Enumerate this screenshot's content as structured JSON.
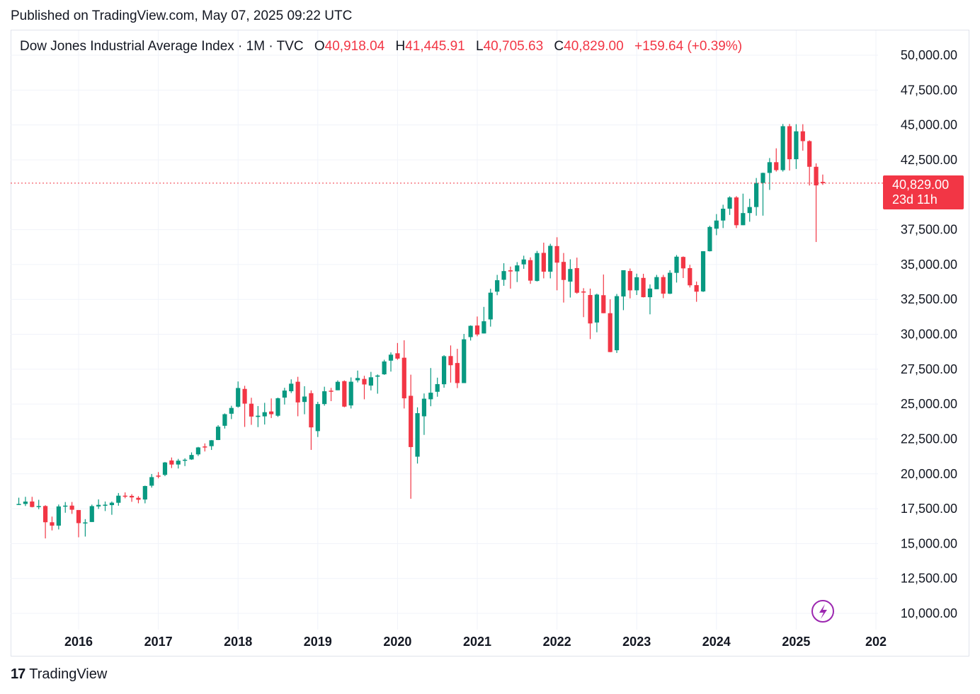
{
  "header": {
    "published": "Published on TradingView.com, May 07, 2025 09:22 UTC"
  },
  "legend": {
    "symbol": "Dow Jones Industrial Average Index · 1M · TVC",
    "open_label": "O",
    "open": "40,918.04",
    "high_label": "H",
    "high": "41,445.91",
    "low_label": "L",
    "low": "40,705.63",
    "close_label": "C",
    "close": "40,829.00",
    "change": "+159.64 (+0.39%)"
  },
  "price_tag": {
    "price": "40,829.00",
    "countdown": "23d 11h"
  },
  "footer": {
    "brand": "TradingView",
    "logo_mark": "17"
  },
  "colors": {
    "up": "#089981",
    "down": "#f23645",
    "grid": "#f0f3fa",
    "accent": "#9c27b0"
  },
  "chart_data": {
    "type": "candlestick",
    "interval": "1M",
    "y_ticks": [
      10000,
      12500,
      15000,
      17500,
      20000,
      22500,
      25000,
      27500,
      30000,
      32500,
      35000,
      37500,
      42500,
      45000,
      47500,
      50000
    ],
    "y_tick_labels": [
      "10,000.00",
      "12,500.00",
      "15,000.00",
      "17,500.00",
      "20,000.00",
      "22,500.00",
      "25,000.00",
      "27,500.00",
      "30,000.00",
      "32,500.00",
      "35,000.00",
      "37,500.00",
      "42,500.00",
      "45,000.00",
      "47,500.00",
      "50,000.00"
    ],
    "x_ticks": [
      "2016",
      "2017",
      "2018",
      "2019",
      "2020",
      "2021",
      "2022",
      "2023",
      "2024",
      "2025",
      "202"
    ],
    "ylim": [
      9000,
      51000
    ],
    "last_price": 40829.0,
    "candles": [
      {
        "t": "2015-04",
        "o": 17776,
        "h": 18289,
        "l": 17777,
        "c": 17841
      },
      {
        "t": "2015-05",
        "o": 17840,
        "h": 18352,
        "l": 17690,
        "c": 18011
      },
      {
        "t": "2015-06",
        "o": 18017,
        "h": 18352,
        "l": 17595,
        "c": 17620
      },
      {
        "t": "2015-07",
        "o": 17639,
        "h": 18137,
        "l": 17465,
        "c": 17690
      },
      {
        "t": "2015-08",
        "o": 17690,
        "h": 17750,
        "l": 15370,
        "c": 16528
      },
      {
        "t": "2015-09",
        "o": 16528,
        "h": 16933,
        "l": 15942,
        "c": 16285
      },
      {
        "t": "2015-10",
        "o": 16285,
        "h": 17799,
        "l": 16013,
        "c": 17664
      },
      {
        "t": "2015-11",
        "o": 17664,
        "h": 17978,
        "l": 17210,
        "c": 17720
      },
      {
        "t": "2015-12",
        "o": 17720,
        "h": 17980,
        "l": 17128,
        "c": 17425
      },
      {
        "t": "2016-01",
        "o": 17405,
        "h": 17405,
        "l": 15451,
        "c": 16466
      },
      {
        "t": "2016-02",
        "o": 16451,
        "h": 16752,
        "l": 15503,
        "c": 16517
      },
      {
        "t": "2016-03",
        "o": 16546,
        "h": 17791,
        "l": 16546,
        "c": 17685
      },
      {
        "t": "2016-04",
        "o": 17661,
        "h": 18168,
        "l": 17484,
        "c": 17774
      },
      {
        "t": "2016-05",
        "o": 17784,
        "h": 18015,
        "l": 17331,
        "c": 17787
      },
      {
        "t": "2016-06",
        "o": 17755,
        "h": 18016,
        "l": 17063,
        "c": 17930
      },
      {
        "t": "2016-07",
        "o": 17924,
        "h": 18623,
        "l": 17713,
        "c": 18432
      },
      {
        "t": "2016-08",
        "o": 18434,
        "h": 18668,
        "l": 18247,
        "c": 18401
      },
      {
        "t": "2016-09",
        "o": 18419,
        "h": 18539,
        "l": 17993,
        "c": 18308
      },
      {
        "t": "2016-10",
        "o": 18279,
        "h": 18399,
        "l": 17888,
        "c": 18142
      },
      {
        "t": "2016-11",
        "o": 18158,
        "h": 19152,
        "l": 17884,
        "c": 19124
      },
      {
        "t": "2016-12",
        "o": 19149,
        "h": 19987,
        "l": 19011,
        "c": 19763
      },
      {
        "t": "2017-01",
        "o": 19872,
        "h": 20125,
        "l": 19677,
        "c": 19864
      },
      {
        "t": "2017-02",
        "o": 19923,
        "h": 20851,
        "l": 19831,
        "c": 20812
      },
      {
        "t": "2017-03",
        "o": 20957,
        "h": 21169,
        "l": 20412,
        "c": 20663
      },
      {
        "t": "2017-04",
        "o": 20665,
        "h": 21070,
        "l": 20380,
        "c": 20941
      },
      {
        "t": "2017-05",
        "o": 20962,
        "h": 21112,
        "l": 20553,
        "c": 21009
      },
      {
        "t": "2017-06",
        "o": 21030,
        "h": 21535,
        "l": 20997,
        "c": 21350
      },
      {
        "t": "2017-07",
        "o": 21392,
        "h": 21929,
        "l": 21279,
        "c": 21891
      },
      {
        "t": "2017-08",
        "o": 21961,
        "h": 22179,
        "l": 21600,
        "c": 21948
      },
      {
        "t": "2017-09",
        "o": 21981,
        "h": 22419,
        "l": 21709,
        "c": 22405
      },
      {
        "t": "2017-10",
        "o": 22423,
        "h": 23485,
        "l": 22416,
        "c": 23377
      },
      {
        "t": "2017-11",
        "o": 23442,
        "h": 24327,
        "l": 23242,
        "c": 24272
      },
      {
        "t": "2017-12",
        "o": 24305,
        "h": 24876,
        "l": 23921,
        "c": 24719
      },
      {
        "t": "2018-01",
        "o": 24809,
        "h": 26617,
        "l": 24741,
        "c": 26149
      },
      {
        "t": "2018-02",
        "o": 26084,
        "h": 26307,
        "l": 23360,
        "c": 25029
      },
      {
        "t": "2018-03",
        "o": 25025,
        "h": 25450,
        "l": 23509,
        "c": 24103
      },
      {
        "t": "2018-04",
        "o": 24076,
        "h": 24858,
        "l": 23345,
        "c": 24163
      },
      {
        "t": "2018-05",
        "o": 24117,
        "h": 25087,
        "l": 23532,
        "c": 24416
      },
      {
        "t": "2018-06",
        "o": 24467,
        "h": 25402,
        "l": 23997,
        "c": 24271
      },
      {
        "t": "2018-07",
        "o": 24161,
        "h": 25461,
        "l": 24077,
        "c": 25415
      },
      {
        "t": "2018-08",
        "o": 25461,
        "h": 26167,
        "l": 24965,
        "c": 25965
      },
      {
        "t": "2018-09",
        "o": 25916,
        "h": 26769,
        "l": 25789,
        "c": 26458
      },
      {
        "t": "2018-10",
        "o": 26598,
        "h": 26952,
        "l": 24123,
        "c": 25116
      },
      {
        "t": "2018-11",
        "o": 25150,
        "h": 26277,
        "l": 24268,
        "c": 25538
      },
      {
        "t": "2018-12",
        "o": 25780,
        "h": 25980,
        "l": 21713,
        "c": 23327
      },
      {
        "t": "2019-01",
        "o": 23059,
        "h": 25160,
        "l": 22638,
        "c": 24999
      },
      {
        "t": "2019-02",
        "o": 24999,
        "h": 26242,
        "l": 24883,
        "c": 25916
      },
      {
        "t": "2019-03",
        "o": 25958,
        "h": 26155,
        "l": 25208,
        "c": 25929
      },
      {
        "t": "2019-04",
        "o": 25987,
        "h": 26696,
        "l": 25987,
        "c": 26593
      },
      {
        "t": "2019-05",
        "o": 26640,
        "h": 26696,
        "l": 24768,
        "c": 24815
      },
      {
        "t": "2019-06",
        "o": 24901,
        "h": 26907,
        "l": 24680,
        "c": 26600
      },
      {
        "t": "2019-07",
        "o": 26700,
        "h": 27399,
        "l": 26550,
        "c": 26864
      },
      {
        "t": "2019-08",
        "o": 26799,
        "h": 27025,
        "l": 25339,
        "c": 26403
      },
      {
        "t": "2019-09",
        "o": 26323,
        "h": 27306,
        "l": 25978,
        "c": 26917
      },
      {
        "t": "2019-10",
        "o": 26962,
        "h": 27122,
        "l": 25743,
        "c": 27046
      },
      {
        "t": "2019-11",
        "o": 27130,
        "h": 28175,
        "l": 27091,
        "c": 28051
      },
      {
        "t": "2019-12",
        "o": 28109,
        "h": 28701,
        "l": 27325,
        "c": 28538
      },
      {
        "t": "2020-01",
        "o": 28638,
        "h": 29374,
        "l": 28170,
        "c": 28256
      },
      {
        "t": "2020-02",
        "o": 28320,
        "h": 29568,
        "l": 24681,
        "c": 25409
      },
      {
        "t": "2020-03",
        "o": 25591,
        "h": 27102,
        "l": 18214,
        "c": 21917
      },
      {
        "t": "2020-04",
        "o": 21227,
        "h": 24764,
        "l": 20735,
        "c": 24345
      },
      {
        "t": "2020-05",
        "o": 24121,
        "h": 25759,
        "l": 22789,
        "c": 25383
      },
      {
        "t": "2020-06",
        "o": 25342,
        "h": 27580,
        "l": 24843,
        "c": 25813
      },
      {
        "t": "2020-07",
        "o": 25879,
        "h": 26890,
        "l": 25524,
        "c": 26428
      },
      {
        "t": "2020-08",
        "o": 26418,
        "h": 28502,
        "l": 26170,
        "c": 28430
      },
      {
        "t": "2020-09",
        "o": 28439,
        "h": 29199,
        "l": 26537,
        "c": 27782
      },
      {
        "t": "2020-10",
        "o": 27941,
        "h": 28959,
        "l": 26143,
        "c": 26502
      },
      {
        "t": "2020-11",
        "o": 26501,
        "h": 30026,
        "l": 26501,
        "c": 29639
      },
      {
        "t": "2020-12",
        "o": 29796,
        "h": 30637,
        "l": 29551,
        "c": 30606
      },
      {
        "t": "2021-01",
        "o": 30628,
        "h": 31272,
        "l": 29857,
        "c": 29983
      },
      {
        "t": "2021-02",
        "o": 30058,
        "h": 31962,
        "l": 30058,
        "c": 30932
      },
      {
        "t": "2021-03",
        "o": 31065,
        "h": 33259,
        "l": 30548,
        "c": 32981
      },
      {
        "t": "2021-04",
        "o": 33054,
        "h": 34257,
        "l": 32800,
        "c": 33874
      },
      {
        "t": "2021-05",
        "o": 33904,
        "h": 35091,
        "l": 33473,
        "c": 34529
      },
      {
        "t": "2021-06",
        "o": 34584,
        "h": 34849,
        "l": 33271,
        "c": 34503
      },
      {
        "t": "2021-07",
        "o": 34507,
        "h": 35171,
        "l": 33741,
        "c": 34935
      },
      {
        "t": "2021-08",
        "o": 35010,
        "h": 35631,
        "l": 34690,
        "c": 35361
      },
      {
        "t": "2021-09",
        "o": 35312,
        "h": 35510,
        "l": 33613,
        "c": 33844
      },
      {
        "t": "2021-10",
        "o": 33820,
        "h": 35975,
        "l": 33785,
        "c": 35820
      },
      {
        "t": "2021-11",
        "o": 35833,
        "h": 36566,
        "l": 34007,
        "c": 34484
      },
      {
        "t": "2021-12",
        "o": 34485,
        "h": 36485,
        "l": 34007,
        "c": 36338
      },
      {
        "t": "2022-01",
        "o": 36321,
        "h": 36953,
        "l": 33150,
        "c": 35132
      },
      {
        "t": "2022-02",
        "o": 35186,
        "h": 35824,
        "l": 32273,
        "c": 33893
      },
      {
        "t": "2022-03",
        "o": 33773,
        "h": 35372,
        "l": 32633,
        "c": 34678
      },
      {
        "t": "2022-04",
        "o": 34742,
        "h": 35492,
        "l": 32904,
        "c": 32977
      },
      {
        "t": "2022-05",
        "o": 33067,
        "h": 33304,
        "l": 31228,
        "c": 32990
      },
      {
        "t": "2022-06",
        "o": 32814,
        "h": 33273,
        "l": 29653,
        "c": 30775
      },
      {
        "t": "2022-07",
        "o": 30843,
        "h": 32910,
        "l": 30143,
        "c": 32845
      },
      {
        "t": "2022-08",
        "o": 32799,
        "h": 34281,
        "l": 31509,
        "c": 31510
      },
      {
        "t": "2022-09",
        "o": 31511,
        "h": 32505,
        "l": 28715,
        "c": 28726
      },
      {
        "t": "2022-10",
        "o": 28855,
        "h": 32889,
        "l": 28661,
        "c": 32733
      },
      {
        "t": "2022-11",
        "o": 32707,
        "h": 34590,
        "l": 31727,
        "c": 34590
      },
      {
        "t": "2022-12",
        "o": 34533,
        "h": 34712,
        "l": 32573,
        "c": 33147
      },
      {
        "t": "2023-01",
        "o": 33149,
        "h": 34342,
        "l": 32812,
        "c": 34086
      },
      {
        "t": "2023-02",
        "o": 34039,
        "h": 34335,
        "l": 32638,
        "c": 32657
      },
      {
        "t": "2023-03",
        "o": 32656,
        "h": 33572,
        "l": 31429,
        "c": 33274
      },
      {
        "t": "2023-04",
        "o": 33226,
        "h": 34257,
        "l": 33235,
        "c": 34098
      },
      {
        "t": "2023-05",
        "o": 34099,
        "h": 34257,
        "l": 32586,
        "c": 32908
      },
      {
        "t": "2023-06",
        "o": 32906,
        "h": 34588,
        "l": 32880,
        "c": 34407
      },
      {
        "t": "2023-07",
        "o": 34401,
        "h": 35679,
        "l": 33705,
        "c": 35560
      },
      {
        "t": "2023-08",
        "o": 35542,
        "h": 35580,
        "l": 34029,
        "c": 34722
      },
      {
        "t": "2023-09",
        "o": 34742,
        "h": 34979,
        "l": 33353,
        "c": 33508
      },
      {
        "t": "2023-10",
        "o": 33520,
        "h": 33778,
        "l": 32327,
        "c": 33053
      },
      {
        "t": "2023-11",
        "o": 33071,
        "h": 35954,
        "l": 33027,
        "c": 35951
      },
      {
        "t": "2023-12",
        "o": 35951,
        "h": 37778,
        "l": 35936,
        "c": 37690
      },
      {
        "t": "2024-01",
        "o": 37566,
        "h": 38612,
        "l": 37100,
        "c": 38150
      },
      {
        "t": "2024-02",
        "o": 38150,
        "h": 39283,
        "l": 37612,
        "c": 38996
      },
      {
        "t": "2024-03",
        "o": 39001,
        "h": 39890,
        "l": 38552,
        "c": 39807
      },
      {
        "t": "2024-04",
        "o": 39807,
        "h": 39900,
        "l": 37611,
        "c": 37816
      },
      {
        "t": "2024-05",
        "o": 37816,
        "h": 40077,
        "l": 37816,
        "c": 38686
      },
      {
        "t": "2024-06",
        "o": 38686,
        "h": 39713,
        "l": 38066,
        "c": 39118
      },
      {
        "t": "2024-07",
        "o": 39118,
        "h": 41198,
        "l": 38499,
        "c": 40842
      },
      {
        "t": "2024-08",
        "o": 40842,
        "h": 41585,
        "l": 38499,
        "c": 41563
      },
      {
        "t": "2024-09",
        "o": 41563,
        "h": 42628,
        "l": 40345,
        "c": 42330
      },
      {
        "t": "2024-10",
        "o": 42330,
        "h": 43325,
        "l": 41659,
        "c": 41763
      },
      {
        "t": "2024-11",
        "o": 41763,
        "h": 45071,
        "l": 41659,
        "c": 44910
      },
      {
        "t": "2024-12",
        "o": 44910,
        "h": 45073,
        "l": 41732,
        "c": 42544
      },
      {
        "t": "2025-01",
        "o": 42544,
        "h": 45054,
        "l": 41844,
        "c": 44544
      },
      {
        "t": "2025-02",
        "o": 44544,
        "h": 45054,
        "l": 43159,
        "c": 43841
      },
      {
        "t": "2025-03",
        "o": 43841,
        "h": 43900,
        "l": 40661,
        "c": 42002
      },
      {
        "t": "2025-04",
        "o": 42002,
        "h": 42248,
        "l": 36612,
        "c": 40669
      },
      {
        "t": "2025-05",
        "o": 40918,
        "h": 41446,
        "l": 40706,
        "c": 40829
      }
    ]
  }
}
